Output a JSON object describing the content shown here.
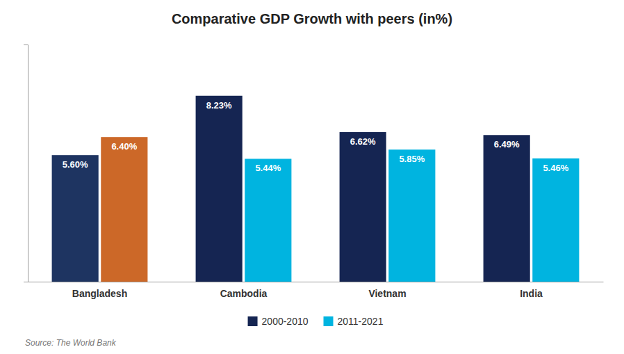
{
  "chart_data": {
    "type": "bar",
    "title": "Comparative GDP Growth with peers (in%)",
    "categories": [
      "Bangladesh",
      "Cambodia",
      "Vietnam",
      "India"
    ],
    "series": [
      {
        "name": "2000-2010",
        "color": "#152552",
        "colors": [
          "#1e3461",
          "#152552",
          "#152552",
          "#152552"
        ],
        "values": [
          5.6,
          8.23,
          6.62,
          6.49
        ],
        "value_labels": [
          "5.60%",
          "8.23%",
          "6.62%",
          "6.49%"
        ]
      },
      {
        "name": "2011-2021",
        "color": "#00b4e0",
        "colors": [
          "#cc6828",
          "#00b4e0",
          "#00b4e0",
          "#00b4e0"
        ],
        "values": [
          6.4,
          5.44,
          5.85,
          5.46
        ],
        "value_labels": [
          "6.40%",
          "5.44%",
          "5.85%",
          "5.46%"
        ]
      }
    ],
    "ylim": [
      0,
      10.5
    ],
    "data_labels": true,
    "tick_labels": "x",
    "grid": false,
    "legend": "bottom",
    "source": "Source: The World Bank"
  }
}
